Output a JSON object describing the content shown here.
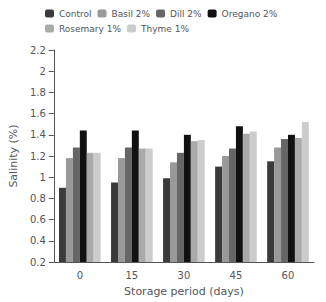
{
  "chart_data": {
    "type": "bar",
    "xlabel": "Storage period (days)",
    "ylabel": "Salinity (%)",
    "categories": [
      "0",
      "15",
      "30",
      "45",
      "60"
    ],
    "series": [
      {
        "name": "Control",
        "color": "#3a3a3a",
        "values": [
          0.9,
          0.95,
          0.99,
          1.1,
          1.15
        ]
      },
      {
        "name": "Basil 2%",
        "color": "#999999",
        "values": [
          1.18,
          1.18,
          1.14,
          1.2,
          1.28
        ]
      },
      {
        "name": "Dill 2%",
        "color": "#666666",
        "values": [
          1.28,
          1.28,
          1.23,
          1.27,
          1.36
        ]
      },
      {
        "name": "Oregano 2%",
        "color": "#111111",
        "values": [
          1.44,
          1.44,
          1.4,
          1.48,
          1.4
        ]
      },
      {
        "name": "Rosemary 1%",
        "color": "#aaaaaa",
        "values": [
          1.23,
          1.27,
          1.34,
          1.41,
          1.37
        ]
      },
      {
        "name": "Thyme 1%",
        "color": "#cccccc",
        "values": [
          1.23,
          1.27,
          1.35,
          1.43,
          1.52
        ]
      }
    ],
    "ylim": [
      0.2,
      2.2
    ],
    "yticks": [
      0.2,
      0.4,
      0.6,
      0.8,
      1,
      1.2,
      1.4,
      1.6,
      1.8,
      2,
      2.2
    ],
    "grid": false,
    "legend": "upper right"
  }
}
